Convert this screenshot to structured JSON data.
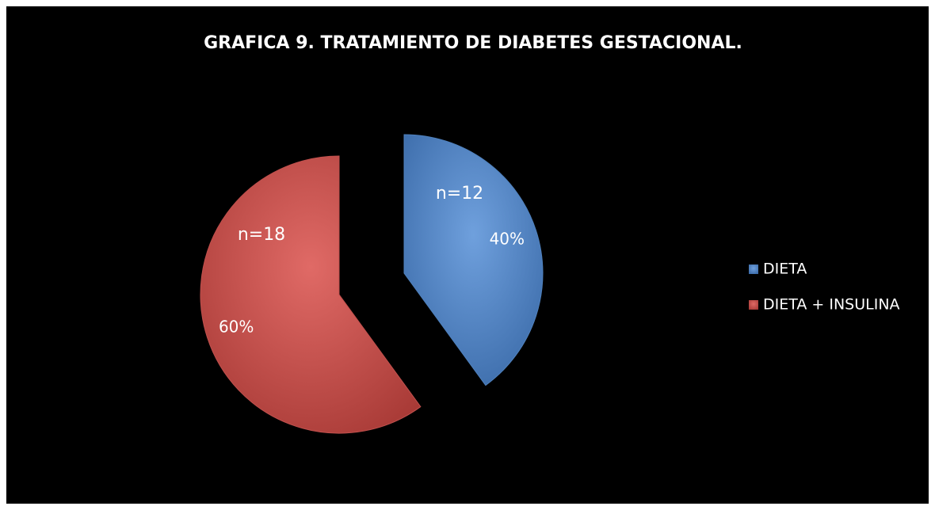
{
  "chart_data": {
    "type": "pie",
    "title": "GRAFICA 9. TRATAMIENTO DE DIABETES GESTACIONAL.",
    "categories": [
      "DIETA",
      "DIETA + INSULINA"
    ],
    "values": [
      40,
      60
    ],
    "value_labels": [
      "40%",
      "60%"
    ],
    "colors": [
      "#4f81bd",
      "#c0504d"
    ],
    "annotations": [
      "n=12",
      "n=18"
    ],
    "legend": "right"
  }
}
